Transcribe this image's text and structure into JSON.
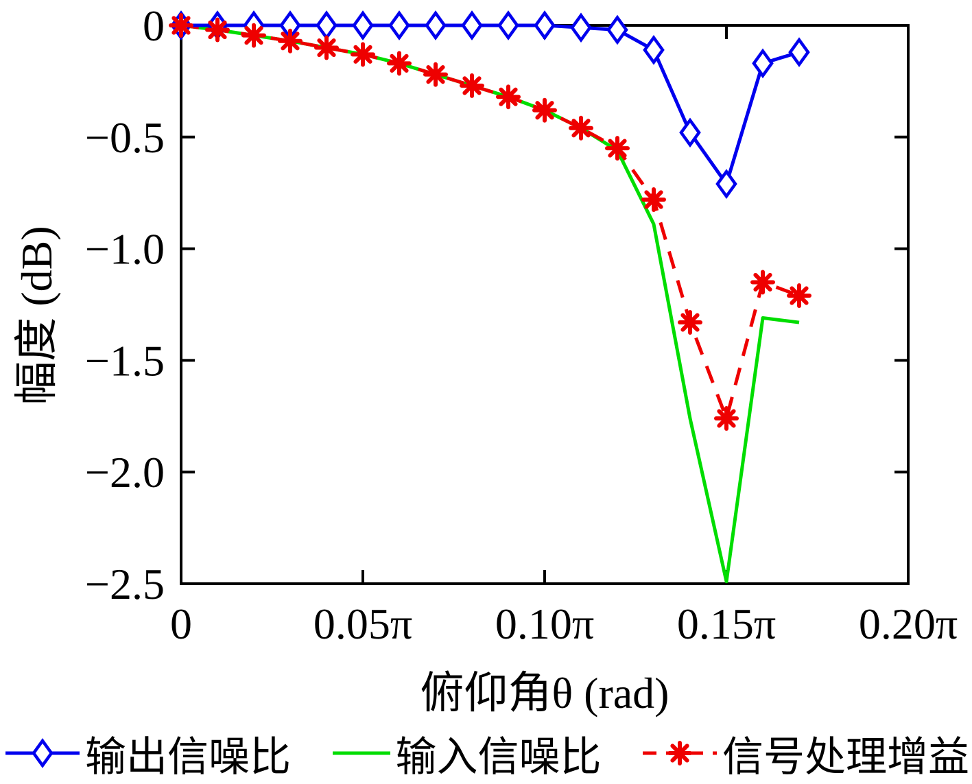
{
  "chart_data": {
    "type": "line",
    "title": "",
    "xlabel": "俯仰角θ (rad)",
    "ylabel": "幅度 (dB)",
    "x_unit": "multiples of π (rad)",
    "xlim": [
      0,
      0.2
    ],
    "ylim": [
      -2.5,
      0
    ],
    "grid": false,
    "legend_position": "bottom",
    "x": [
      0,
      0.01,
      0.02,
      0.03,
      0.04,
      0.05,
      0.06,
      0.07,
      0.08,
      0.09,
      0.1,
      0.11,
      0.12,
      0.13,
      0.14,
      0.15,
      0.16,
      0.17
    ],
    "series": [
      {
        "name": "输出信噪比",
        "color": "#0000ee",
        "line": "solid",
        "marker": "diamond",
        "values": [
          0,
          0,
          0,
          0,
          0,
          0,
          0,
          0,
          0,
          0,
          0,
          -0.01,
          -0.02,
          -0.11,
          -0.48,
          -0.71,
          -0.17,
          -0.12
        ]
      },
      {
        "name": "输入信噪比",
        "color": "#00dd00",
        "line": "solid",
        "marker": "none",
        "values": [
          0,
          -0.02,
          -0.045,
          -0.07,
          -0.1,
          -0.13,
          -0.17,
          -0.22,
          -0.27,
          -0.32,
          -0.38,
          -0.46,
          -0.56,
          -0.89,
          -1.76,
          -2.49,
          -1.31,
          -1.33
        ]
      },
      {
        "name": "信号处理增益",
        "color": "#ee0000",
        "line": "dashed",
        "marker": "asterisk",
        "values": [
          0,
          -0.02,
          -0.045,
          -0.07,
          -0.1,
          -0.13,
          -0.17,
          -0.22,
          -0.27,
          -0.32,
          -0.38,
          -0.46,
          -0.55,
          -0.78,
          -1.33,
          -1.76,
          -1.15,
          -1.21
        ]
      }
    ],
    "xticks": [
      {
        "v": 0,
        "label": "0"
      },
      {
        "v": 0.05,
        "label": "0.05π"
      },
      {
        "v": 0.1,
        "label": "0.10π"
      },
      {
        "v": 0.15,
        "label": "0.15π"
      },
      {
        "v": 0.2,
        "label": "0.20π"
      }
    ],
    "yticks": [
      {
        "v": 0,
        "label": "0"
      },
      {
        "v": -0.5,
        "label": "−0.5"
      },
      {
        "v": -1.0,
        "label": "−1.0"
      },
      {
        "v": -1.5,
        "label": "−1.5"
      },
      {
        "v": -2.0,
        "label": "−2.0"
      },
      {
        "v": -2.5,
        "label": "−2.5"
      }
    ],
    "frame_color": "#000000"
  }
}
